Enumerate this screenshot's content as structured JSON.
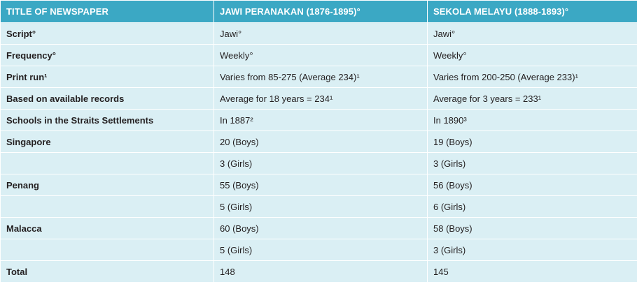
{
  "header": {
    "col1": "TITLE OF NEWSPAPER",
    "col2": "JAWI PERANAKAN (1876-1895)°",
    "col3": "SEKOLA MELAYU (1888-1893)°"
  },
  "rows": [
    {
      "label": "Script°",
      "jawi": "Jawi°",
      "sekola": "Jawi°"
    },
    {
      "label": "Frequency°",
      "jawi": "Weekly°",
      "sekola": "Weekly°"
    },
    {
      "label": "Print run¹",
      "jawi": "Varies from 85-275 (Average 234)¹",
      "sekola": "Varies from 200-250 (Average 233)¹"
    },
    {
      "label": "Based on available records",
      "jawi": "Average for 18 years = 234¹",
      "sekola": "Average for 3 years = 233¹"
    },
    {
      "label": "Schools in the Straits Settlements",
      "jawi": "In 1887²",
      "sekola": "In 1890³"
    },
    {
      "label": "Singapore",
      "jawi": "20 (Boys)",
      "sekola": "19 (Boys)"
    },
    {
      "label": "",
      "jawi": "3 (Girls)",
      "sekola": "3 (Girls)"
    },
    {
      "label": "Penang",
      "jawi": "55 (Boys)",
      "sekola": "56 (Boys)"
    },
    {
      "label": "",
      "jawi": "5 (Girls)",
      "sekola": "6 (Girls)"
    },
    {
      "label": "Malacca",
      "jawi": "60 (Boys)",
      "sekola": "58 (Boys)"
    },
    {
      "label": "",
      "jawi": "5 (Girls)",
      "sekola": "3 (Girls)"
    },
    {
      "label": "Total",
      "jawi": "148",
      "sekola": "145"
    }
  ]
}
